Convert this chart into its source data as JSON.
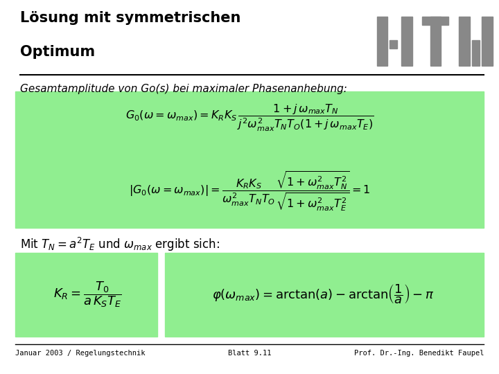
{
  "title_line1": "Lösung mit symmetrischen",
  "title_line2": "Optimum",
  "title_fontsize": 15,
  "subtitle": "Gesamtamplitude von Go(s) bei maximaler Phasenanhebung:",
  "subtitle_fontsize": 11,
  "bg_color": "#ffffff",
  "green_bg": "#90EE90",
  "footer_left": "Januar 2003 / Regelungstechnik",
  "footer_center": "Blatt 9.11",
  "footer_right": "Prof. Dr.-Ing. Benedikt Faupel",
  "footer_fontsize": 7.5,
  "htw_color": "#888888",
  "line_color": "#000000",
  "text_color": "#000000"
}
